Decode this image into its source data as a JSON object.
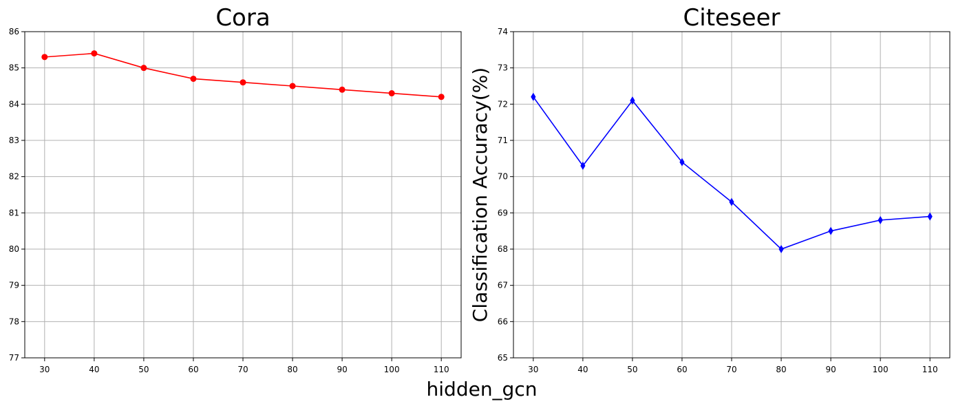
{
  "figure": {
    "xlabel": "hidden_gcn",
    "ylabel": "Classification Accuracy(%)"
  },
  "chart_data": [
    {
      "type": "line",
      "title": "Cora",
      "x": [
        30,
        40,
        50,
        60,
        70,
        80,
        90,
        100,
        110
      ],
      "series": [
        {
          "values": [
            85.3,
            85.4,
            85.0,
            84.7,
            84.6,
            84.5,
            84.4,
            84.3,
            84.2
          ],
          "color": "#ff0000",
          "marker": "circle"
        }
      ],
      "xticks": [
        30,
        40,
        50,
        60,
        70,
        80,
        90,
        100,
        110
      ],
      "yticks": [
        77,
        78,
        79,
        80,
        81,
        82,
        83,
        84,
        85,
        86
      ],
      "xlim": [
        26,
        114
      ],
      "ylim": [
        77,
        86
      ],
      "grid": true
    },
    {
      "type": "line",
      "title": "Citeseer",
      "x": [
        30,
        40,
        50,
        60,
        70,
        80,
        90,
        100,
        110
      ],
      "series": [
        {
          "values": [
            72.2,
            70.3,
            72.1,
            70.4,
            69.3,
            68.0,
            68.5,
            68.8,
            68.9
          ],
          "color": "#0000ff",
          "marker": "thin_diamond"
        }
      ],
      "xticks": [
        30,
        40,
        50,
        60,
        70,
        80,
        90,
        100,
        110
      ],
      "yticks": [
        65,
        66,
        67,
        68,
        69,
        70,
        71,
        72,
        73,
        74
      ],
      "xlim": [
        26,
        114
      ],
      "ylim": [
        65,
        74
      ],
      "grid": true
    }
  ]
}
